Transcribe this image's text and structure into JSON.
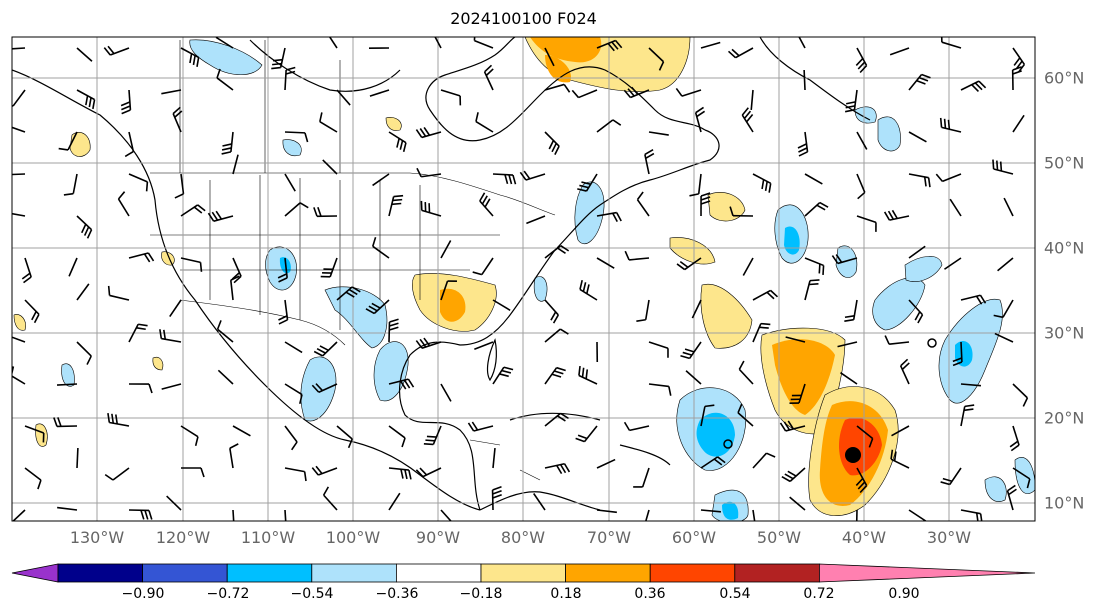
{
  "title": "2024100100 F024",
  "lon_labels": [
    "130°W",
    "120°W",
    "110°W",
    "100°W",
    "90°W",
    "80°W",
    "70°W",
    "60°W",
    "50°W",
    "40°W",
    "30°W"
  ],
  "lat_labels": [
    "60°N",
    "50°N",
    "40°N",
    "30°N",
    "20°N",
    "10°N"
  ],
  "colorbar": {
    "ticks": [
      "−0.90",
      "−0.72",
      "−0.54",
      "−0.36",
      "−0.18",
      "0.18",
      "0.36",
      "0.54",
      "0.72",
      "0.90"
    ],
    "colors": [
      "#9932cc",
      "#00008b",
      "#3455d4",
      "#00bfff",
      "#aee2fb",
      "#ffffff",
      "#fde68c",
      "#ffa500",
      "#ff4500",
      "#b22222",
      "#ff80b0"
    ]
  },
  "colors": {
    "light_blue": "#aee2fb",
    "blue": "#00bfff",
    "yellow": "#fde68c",
    "orange": "#ffa500",
    "red_orange": "#ff4500",
    "grid": "#a0a0a0",
    "axis_label": "#666666"
  },
  "storm_marker": "black-dot",
  "wind_barbs": "black"
}
